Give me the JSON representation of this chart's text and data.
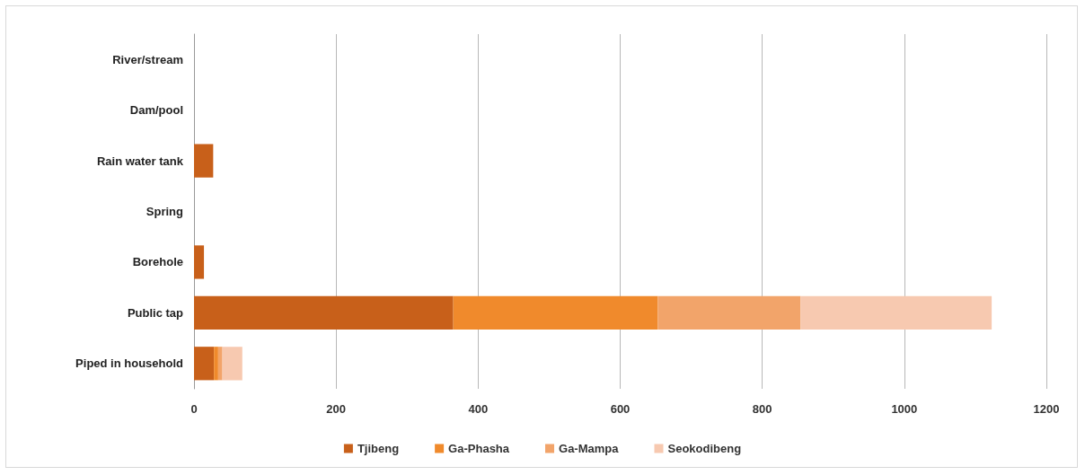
{
  "chart_data": {
    "type": "bar",
    "orientation": "horizontal",
    "stacked": true,
    "categories": [
      "River/stream",
      "Dam/pool",
      "Rain water tank",
      "Spring",
      "Borehole",
      "Public tap",
      "Piped in household"
    ],
    "series": [
      {
        "name": "Tjibeng",
        "color": "#c8601a",
        "values": [
          0,
          0,
          27,
          0,
          14,
          365,
          28
        ]
      },
      {
        "name": "Ga-Phasha",
        "color": "#f08a2c",
        "values": [
          0,
          0,
          0,
          0,
          0,
          288,
          6
        ]
      },
      {
        "name": "Ga-Mampa",
        "color": "#f2a46a",
        "values": [
          0,
          0,
          0,
          0,
          0,
          201,
          6
        ]
      },
      {
        "name": "Seokodibeng",
        "color": "#f7c9b0",
        "values": [
          0,
          0,
          0,
          0,
          0,
          269,
          28
        ]
      }
    ],
    "xlim": [
      0,
      1200
    ],
    "xticks": [
      0,
      200,
      400,
      600,
      800,
      1000,
      1200
    ],
    "grid": "x",
    "legend": "bottom"
  }
}
